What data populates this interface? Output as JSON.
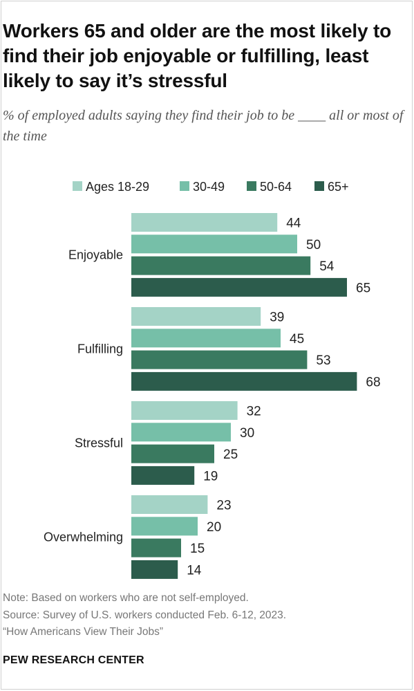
{
  "title": "Workers 65 and older are the most likely to find their job enjoyable or fulfilling, least likely to say it’s stressful",
  "subtitle": "% of employed adults saying they find their job to be ____ all or most of the time",
  "colors": {
    "ages_18_29": "#a4d3c6",
    "ages_30_49": "#76bfa8",
    "ages_50_64": "#3a7a60",
    "ages_65_plus": "#2c5c4c"
  },
  "chart_data": {
    "type": "bar",
    "orientation": "horizontal",
    "categories": [
      "Enjoyable",
      "Fulfilling",
      "Stressful",
      "Overwhelming"
    ],
    "series": [
      {
        "name": "Ages 18-29",
        "color": "#a4d3c6",
        "values": [
          44,
          39,
          32,
          23
        ]
      },
      {
        "name": "30-49",
        "color": "#76bfa8",
        "values": [
          50,
          45,
          30,
          20
        ]
      },
      {
        "name": "50-64",
        "color": "#3a7a60",
        "values": [
          54,
          53,
          25,
          15
        ]
      },
      {
        "name": "65+",
        "color": "#2c5c4c",
        "values": [
          65,
          68,
          19,
          14
        ]
      }
    ],
    "legend_position": "top",
    "data_labels": true,
    "grid": false
  },
  "footer": {
    "note": "Note: Based on workers who are not self-employed.",
    "source": "Source: Survey of U.S. workers conducted Feb. 6-12, 2023.",
    "source_title": "“How Americans View Their Jobs”",
    "brand": "PEW RESEARCH CENTER"
  }
}
